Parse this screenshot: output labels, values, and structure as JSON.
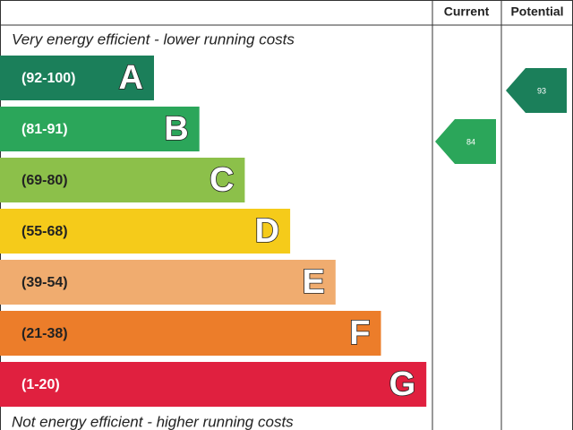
{
  "header": {
    "current": "Current",
    "potential": "Potential"
  },
  "top_note": "Very energy efficient - lower running costs",
  "bottom_note": "Not energy efficient - higher running costs",
  "bands": [
    {
      "range": "(92-100)",
      "letter": "A",
      "color": "#1b7f5a",
      "text_color": "#ffffff"
    },
    {
      "range": "(81-91)",
      "letter": "B",
      "color": "#2ba65a",
      "text_color": "#ffffff"
    },
    {
      "range": "(69-80)",
      "letter": "C",
      "color": "#8cc04a",
      "text_color": "#222222"
    },
    {
      "range": "(55-68)",
      "letter": "D",
      "color": "#f5cb1a",
      "text_color": "#222222"
    },
    {
      "range": "(39-54)",
      "letter": "E",
      "color": "#f0ac6f",
      "text_color": "#222222"
    },
    {
      "range": "(21-38)",
      "letter": "F",
      "color": "#ec7d2a",
      "text_color": "#222222"
    },
    {
      "range": "(1-20)",
      "letter": "G",
      "color": "#e0203f",
      "text_color": "#ffffff"
    }
  ],
  "current": {
    "value": 84,
    "band": 1
  },
  "potential": {
    "value": 93,
    "band": 0
  }
}
